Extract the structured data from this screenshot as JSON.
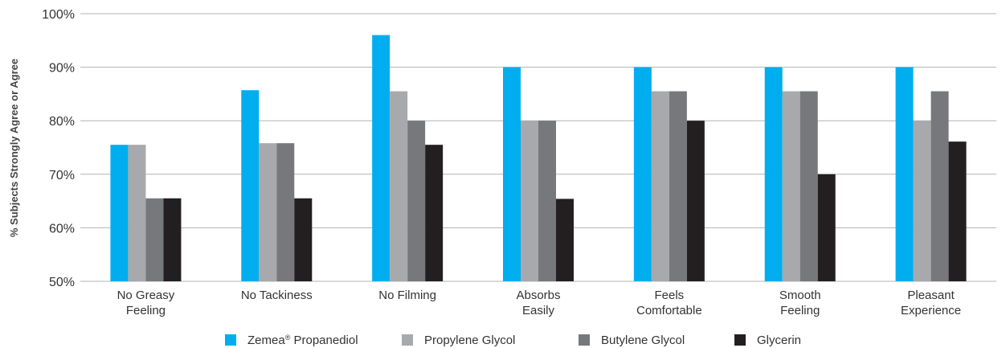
{
  "chart_data": {
    "type": "bar",
    "ylabel": "% Subjects Strongly Agree or Agree",
    "xlabel": "",
    "ylim": [
      50,
      100
    ],
    "yticks": [
      "50%",
      "60%",
      "70%",
      "80%",
      "90%",
      "100%"
    ],
    "grid": true,
    "legend_position": "bottom",
    "categories": [
      [
        "No Greasy",
        "Feeling"
      ],
      [
        "No Tackiness"
      ],
      [
        "No Filming"
      ],
      [
        "Absorbs",
        "Easily"
      ],
      [
        "Feels",
        "Comfortable"
      ],
      [
        "Smooth",
        "Feeling"
      ],
      [
        "Pleasant",
        "Experience"
      ]
    ],
    "series": [
      {
        "name": "Zemea",
        "name_sup": "®",
        "name_rest": " Propanediol",
        "color": "#00aeef",
        "values": [
          75.5,
          85.7,
          96.0,
          90.0,
          90.0,
          90.0,
          90.0
        ]
      },
      {
        "name": "Propylene Glycol",
        "color": "#a7a9ac",
        "values": [
          75.5,
          75.8,
          85.5,
          80.0,
          85.5,
          85.5,
          80.0
        ]
      },
      {
        "name": "Butylene Glycol",
        "color": "#77787b",
        "values": [
          65.5,
          75.8,
          80.0,
          80.0,
          85.5,
          85.5,
          85.5
        ]
      },
      {
        "name": "Glycerin",
        "color": "#231f20",
        "values": [
          65.5,
          65.5,
          75.5,
          65.4,
          80.0,
          70.0,
          76.1
        ]
      }
    ]
  }
}
